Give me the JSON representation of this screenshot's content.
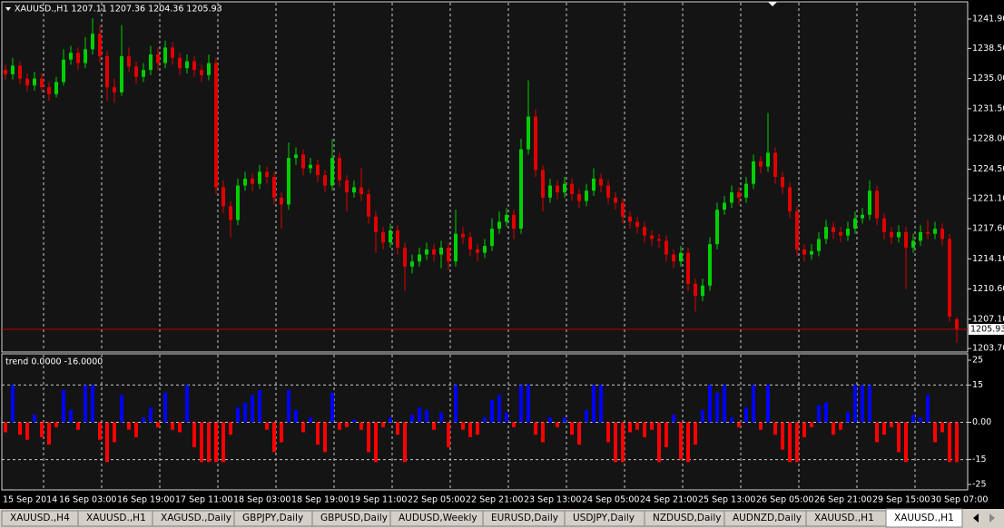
{
  "chart_data": [
    {
      "type": "candlestick",
      "title": "XAUUSD.,H1 1207.11 1207.36 1204.36 1205.93",
      "up_color": "#00d000",
      "down_color": "#e00000",
      "open": [
        1236.0,
        1235.5,
        1236.5,
        1235.0,
        1234.2,
        1235.0,
        1234.0,
        1233.2,
        1234.6,
        1237.2,
        1238.0,
        1236.8,
        1238.4,
        1240.2,
        1237.6,
        1234.0,
        1233.4,
        1237.6,
        1236.4,
        1235.2,
        1236.0,
        1237.8,
        1236.8,
        1238.6,
        1237.4,
        1236.2,
        1237.0,
        1236.0,
        1235.4,
        1236.8,
        1222.4,
        1220.2,
        1218.6,
        1222.6,
        1223.4,
        1222.8,
        1224.2,
        1223.6,
        1221.2,
        1220.4,
        1225.8,
        1226.2,
        1224.6,
        1225.0,
        1223.8,
        1222.6,
        1225.8,
        1223.2,
        1221.8,
        1222.4,
        1221.6,
        1219.0,
        1217.2,
        1216.0,
        1217.4,
        1215.4,
        1213.2,
        1213.8,
        1214.6,
        1215.2,
        1214.6,
        1215.4,
        1213.8,
        1217.0,
        1216.6,
        1215.2,
        1214.8,
        1215.6,
        1217.6,
        1218.4,
        1219.2,
        1217.6,
        1226.8,
        1230.6,
        1224.4,
        1221.2,
        1222.6,
        1221.8,
        1222.8,
        1221.6,
        1220.8,
        1222.0,
        1223.4,
        1222.6,
        1221.2,
        1220.6,
        1219.0,
        1218.4,
        1217.8,
        1216.8,
        1216.4,
        1216.2,
        1214.6,
        1213.8,
        1214.8,
        1211.2,
        1209.8,
        1211.0,
        1215.8,
        1219.8,
        1220.6,
        1221.8,
        1221.2,
        1222.8,
        1225.4,
        1224.8,
        1226.4,
        1223.6,
        1222.4,
        1219.6,
        1215.2,
        1214.6,
        1215.0,
        1216.4,
        1217.8,
        1217.2,
        1216.8,
        1217.6,
        1218.8,
        1219.2,
        1222.0,
        1218.8,
        1217.2,
        1216.6,
        1217.2,
        1215.4,
        1216.2,
        1217.2,
        1217.0,
        1217.6,
        1216.4,
        1207.11
      ],
      "high": [
        1236.6,
        1237.4,
        1237.0,
        1235.6,
        1235.8,
        1235.6,
        1234.6,
        1235.2,
        1238.4,
        1238.8,
        1238.6,
        1239.8,
        1242.0,
        1241.2,
        1238.2,
        1235.0,
        1241.2,
        1238.6,
        1237.0,
        1236.8,
        1238.8,
        1238.6,
        1239.4,
        1239.2,
        1238.0,
        1237.8,
        1237.6,
        1236.6,
        1237.8,
        1237.4,
        1223.2,
        1220.8,
        1223.4,
        1224.2,
        1224.0,
        1225.0,
        1224.8,
        1224.2,
        1221.8,
        1227.6,
        1227.0,
        1226.8,
        1225.8,
        1225.6,
        1224.4,
        1228.0,
        1226.4,
        1223.8,
        1223.2,
        1224.6,
        1222.2,
        1219.6,
        1217.8,
        1218.2,
        1218.0,
        1216.0,
        1214.6,
        1215.4,
        1216.0,
        1215.8,
        1216.2,
        1216.0,
        1219.8,
        1217.8,
        1217.2,
        1215.8,
        1216.4,
        1218.8,
        1219.6,
        1220.0,
        1219.8,
        1228.0,
        1234.8,
        1231.4,
        1225.0,
        1223.4,
        1223.2,
        1223.6,
        1223.4,
        1222.2,
        1222.8,
        1224.6,
        1224.0,
        1223.2,
        1221.8,
        1221.2,
        1219.6,
        1219.0,
        1218.4,
        1217.4,
        1217.0,
        1216.8,
        1215.2,
        1215.6,
        1215.4,
        1211.8,
        1211.8,
        1216.6,
        1220.6,
        1221.4,
        1222.6,
        1222.4,
        1223.6,
        1226.2,
        1226.0,
        1231.0,
        1227.0,
        1224.2,
        1223.0,
        1220.2,
        1215.8,
        1215.8,
        1217.2,
        1218.6,
        1218.4,
        1217.8,
        1218.4,
        1219.6,
        1220.0,
        1223.2,
        1222.6,
        1219.4,
        1217.8,
        1218.0,
        1217.8,
        1217.0,
        1218.0,
        1218.6,
        1218.4,
        1218.2,
        1217.0,
        1207.36
      ],
      "low": [
        1234.9,
        1234.9,
        1234.4,
        1233.5,
        1233.6,
        1233.4,
        1232.4,
        1232.8,
        1234.2,
        1236.6,
        1236.0,
        1236.2,
        1237.8,
        1236.8,
        1232.4,
        1232.2,
        1233.0,
        1235.8,
        1234.4,
        1234.6,
        1235.4,
        1236.0,
        1236.2,
        1236.6,
        1235.4,
        1235.6,
        1235.2,
        1234.6,
        1234.8,
        1221.6,
        1219.4,
        1216.6,
        1218.0,
        1222.0,
        1222.0,
        1222.2,
        1222.8,
        1220.4,
        1217.6,
        1219.8,
        1225.0,
        1223.8,
        1224.0,
        1223.0,
        1221.8,
        1222.0,
        1222.4,
        1219.6,
        1221.2,
        1220.8,
        1218.2,
        1214.8,
        1215.2,
        1215.4,
        1214.6,
        1210.4,
        1212.4,
        1213.2,
        1214.0,
        1213.8,
        1213.0,
        1212.8,
        1213.2,
        1215.8,
        1214.4,
        1213.8,
        1214.2,
        1215.0,
        1217.0,
        1217.8,
        1216.4,
        1217.0,
        1226.2,
        1223.6,
        1219.6,
        1220.6,
        1221.0,
        1221.2,
        1220.8,
        1220.0,
        1220.2,
        1221.4,
        1221.8,
        1220.4,
        1219.8,
        1218.2,
        1217.6,
        1217.0,
        1216.0,
        1215.6,
        1215.4,
        1213.8,
        1213.0,
        1213.2,
        1210.4,
        1208.0,
        1209.2,
        1210.4,
        1215.2,
        1219.2,
        1220.0,
        1220.4,
        1220.6,
        1222.2,
        1224.0,
        1224.2,
        1222.8,
        1221.6,
        1218.8,
        1214.4,
        1213.8,
        1214.0,
        1214.4,
        1215.8,
        1216.4,
        1216.0,
        1216.2,
        1217.0,
        1218.2,
        1218.6,
        1218.0,
        1216.4,
        1215.8,
        1216.0,
        1210.6,
        1214.8,
        1215.6,
        1216.4,
        1216.4,
        1215.6,
        1206.8,
        1204.36
      ],
      "close": [
        1235.5,
        1236.5,
        1235.0,
        1234.2,
        1235.0,
        1234.0,
        1233.2,
        1234.6,
        1237.2,
        1238.0,
        1236.8,
        1238.4,
        1240.2,
        1237.6,
        1234.0,
        1233.4,
        1237.6,
        1236.4,
        1235.2,
        1236.0,
        1237.8,
        1236.8,
        1238.6,
        1237.4,
        1236.2,
        1237.0,
        1236.0,
        1235.4,
        1236.8,
        1222.4,
        1220.2,
        1218.6,
        1222.6,
        1223.4,
        1222.8,
        1224.2,
        1223.6,
        1221.2,
        1220.4,
        1225.8,
        1226.2,
        1224.6,
        1225.0,
        1223.8,
        1222.6,
        1225.8,
        1223.2,
        1221.8,
        1222.4,
        1221.6,
        1219.0,
        1217.2,
        1216.0,
        1217.4,
        1215.4,
        1213.2,
        1213.8,
        1214.6,
        1215.2,
        1214.6,
        1215.4,
        1213.8,
        1217.0,
        1216.6,
        1215.2,
        1214.8,
        1215.6,
        1217.6,
        1218.4,
        1219.2,
        1217.6,
        1226.8,
        1230.6,
        1224.4,
        1221.2,
        1222.6,
        1221.8,
        1222.8,
        1221.6,
        1220.8,
        1222.0,
        1223.4,
        1222.6,
        1221.2,
        1220.6,
        1219.0,
        1218.4,
        1217.8,
        1216.8,
        1216.4,
        1216.2,
        1214.6,
        1213.8,
        1214.8,
        1211.2,
        1209.8,
        1211.0,
        1215.8,
        1219.8,
        1220.6,
        1221.8,
        1221.2,
        1222.8,
        1225.4,
        1224.8,
        1226.4,
        1223.6,
        1222.4,
        1219.6,
        1215.2,
        1214.6,
        1215.0,
        1216.4,
        1217.8,
        1217.2,
        1216.8,
        1217.6,
        1218.8,
        1219.2,
        1222.0,
        1218.8,
        1217.2,
        1216.6,
        1217.2,
        1215.4,
        1216.2,
        1217.2,
        1217.0,
        1217.6,
        1216.4,
        1207.4,
        1205.93
      ],
      "ylim": [
        1203.3,
        1243.9
      ],
      "yticks": [
        {
          "value": 1241.9,
          "label": "1241.90"
        },
        {
          "value": 1238.5,
          "label": "1238.50"
        },
        {
          "value": 1235.0,
          "label": "1235.00"
        },
        {
          "value": 1231.5,
          "label": "1231.50"
        },
        {
          "value": 1228.0,
          "label": "1228.00"
        },
        {
          "value": 1224.5,
          "label": "1224.50"
        },
        {
          "value": 1221.1,
          "label": "1221.10"
        },
        {
          "value": 1217.6,
          "label": "1217.60"
        },
        {
          "value": 1214.1,
          "label": "1214.10"
        },
        {
          "value": 1210.6,
          "label": "1210.60"
        },
        {
          "value": 1207.1,
          "label": "1207.10"
        },
        {
          "value": 1203.7,
          "label": "1203.70"
        }
      ],
      "last_price": 1205.93,
      "last_price_color": "#c00000",
      "grid": "vertical",
      "x_labels": [
        "15 Sep 2014",
        "16 Sep 03:00",
        "16 Sep 19:00",
        "17 Sep 11:00",
        "18 Sep 03:00",
        "18 Sep 19:00",
        "19 Sep 11:00",
        "22 Sep 05:00",
        "22 Sep 21:00",
        "23 Sep 13:00",
        "24 Sep 05:00",
        "24 Sep 21:00",
        "25 Sep 13:00",
        "26 Sep 05:00",
        "26 Sep 21:00",
        "29 Sep 15:00",
        "30 Sep 07:00"
      ]
    },
    {
      "type": "bar",
      "title": "trend 0.0000 -16.0000",
      "positive_color": "#0000ff",
      "negative_color": "#ff0000",
      "values": [
        -4,
        15,
        -5,
        -7,
        3,
        -6,
        -9,
        -2,
        13,
        5,
        -3,
        15,
        15,
        -7,
        -16,
        -8,
        11,
        -3,
        -6,
        2,
        6,
        -2,
        12,
        -3,
        -4,
        15,
        -10,
        -16,
        -16,
        -16,
        -16,
        -5,
        6,
        8,
        11,
        13,
        -3,
        -12,
        -8,
        13,
        5,
        -4,
        2,
        -9,
        -12,
        12,
        -3,
        -2,
        1,
        -3,
        -12,
        -16,
        -2,
        2,
        -5,
        -16,
        3,
        6,
        5,
        -3,
        4,
        -10,
        15,
        -3,
        -6,
        -5,
        2,
        9,
        11,
        4,
        -2,
        15,
        15,
        -5,
        -8,
        2,
        -2,
        2,
        -5,
        -9,
        5,
        15,
        15,
        -8,
        -16,
        -16,
        -4,
        -3,
        -6,
        -3,
        -16,
        -10,
        3,
        -15,
        -16,
        -9,
        5,
        15,
        12,
        15,
        2,
        -2,
        6,
        15,
        -3,
        15,
        -5,
        -11,
        -16,
        -16,
        -6,
        -2,
        7,
        8,
        -5,
        -3,
        4,
        15,
        15,
        15,
        -8,
        -5,
        -2,
        -12,
        -16,
        3,
        2,
        11,
        -8,
        -4,
        -16,
        -16
      ],
      "ylim": [
        -25,
        25
      ],
      "yticks": [
        25,
        15,
        {
          "value": 0,
          "label": "0.00"
        },
        -15,
        -25
      ],
      "levels": [
        15,
        0,
        -15
      ]
    }
  ],
  "tabs": {
    "items": [
      "XAUUSD.,H4",
      "XAUUSD.,H1",
      "XAGUSD.,Daily",
      "GBPJPY,Daily",
      "GBPUSD,Daily",
      "AUDUSD,Weekly",
      "EURUSD,Daily",
      "USDJPY,Daily",
      "NZDUSD,Daily",
      "AUDNZD,Daily",
      "XAUUSD.,H1",
      "XAUUSD.,H1"
    ],
    "active": 11
  }
}
